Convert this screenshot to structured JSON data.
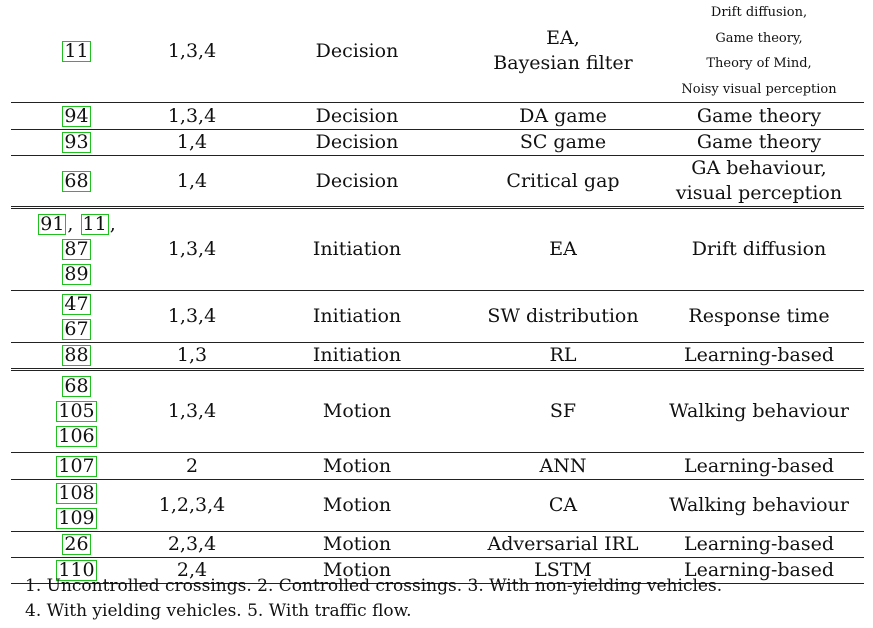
{
  "rows": [
    {
      "refs": [
        [
          "11"
        ]
      ],
      "scenario": "1,3,4",
      "category": "Decision",
      "method": [
        "EA,",
        "Bayesian filter"
      ],
      "theory": [
        "Drift diffusion,",
        "Game theory,",
        "Theory of Mind,",
        "Noisy visual perception"
      ],
      "theory_small": true
    },
    {
      "refs": [
        [
          "94"
        ]
      ],
      "scenario": "1,3,4",
      "category": "Decision",
      "method": [
        "DA game"
      ],
      "theory": [
        "Game theory"
      ]
    },
    {
      "refs": [
        [
          "93"
        ]
      ],
      "scenario": "1,4",
      "category": "Decision",
      "method": [
        "SC game"
      ],
      "theory": [
        "Game theory"
      ]
    },
    {
      "refs": [
        [
          "68"
        ]
      ],
      "scenario": "1,4",
      "category": "Decision",
      "method": [
        "Critical gap"
      ],
      "theory": [
        "GA behaviour,",
        "visual perception"
      ]
    },
    {
      "refs": [
        [
          "91",
          "11"
        ],
        [
          "87"
        ],
        [
          "89"
        ]
      ],
      "scenario": "1,3,4",
      "category": "Initiation",
      "method": [
        "EA"
      ],
      "theory": [
        "Drift diffusion"
      ]
    },
    {
      "refs": [
        [
          "47"
        ],
        [
          "67"
        ]
      ],
      "scenario": "1,3,4",
      "category": "Initiation",
      "method": [
        "SW distribution"
      ],
      "theory": [
        "Response time"
      ]
    },
    {
      "refs": [
        [
          "88"
        ]
      ],
      "scenario": "1,3",
      "category": "Initiation",
      "method": [
        "RL"
      ],
      "theory": [
        "Learning-based"
      ]
    },
    {
      "refs": [
        [
          "68"
        ],
        [
          "105"
        ],
        [
          "106"
        ]
      ],
      "scenario": "1,3,4",
      "category": "Motion",
      "method": [
        "SF"
      ],
      "theory": [
        "Walking behaviour"
      ]
    },
    {
      "refs": [
        [
          "107"
        ]
      ],
      "scenario": "2",
      "category": "Motion",
      "method": [
        "ANN"
      ],
      "theory": [
        "Learning-based"
      ]
    },
    {
      "refs": [
        [
          "108"
        ],
        [
          "109"
        ]
      ],
      "scenario": "1,2,3,4",
      "category": "Motion",
      "method": [
        "CA"
      ],
      "theory": [
        "Walking behaviour"
      ]
    },
    {
      "refs": [
        [
          "26"
        ]
      ],
      "scenario": "2,3,4",
      "category": "Motion",
      "method": [
        "Adversarial IRL"
      ],
      "theory": [
        "Learning-based"
      ]
    },
    {
      "refs": [
        [
          "110"
        ]
      ],
      "scenario": "2,4",
      "category": "Motion",
      "method": [
        "LSTM"
      ],
      "theory": [
        "Learning-based"
      ]
    }
  ],
  "notes": {
    "line1": "1. Uncontrolled crossings. 2. Controlled crossings. 3. With non-yielding vehicles.",
    "line2": "4. With yielding vehicles. 5. With traffic flow."
  },
  "colors": {
    "reference_box": "#20c020",
    "rule": "#222222"
  }
}
